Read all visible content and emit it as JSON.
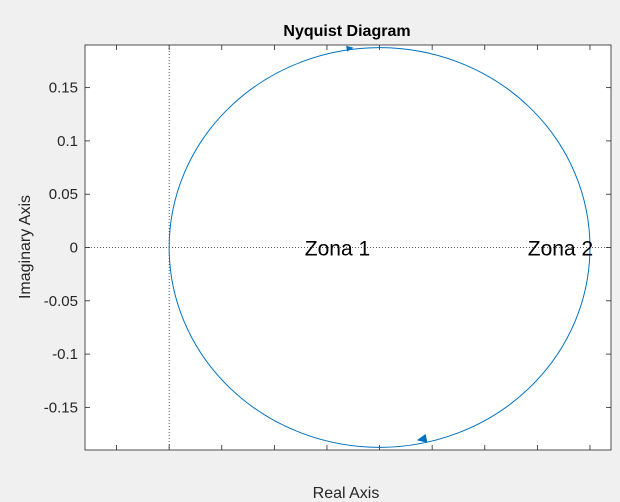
{
  "chart_data": {
    "type": "line",
    "title": "Nyquist Diagram",
    "xlabel": "Real Axis",
    "ylabel": "Imaginary Axis",
    "xlim": [
      -0.2,
      1.05
    ],
    "ylim": [
      -0.19,
      0.19
    ],
    "yticks": [
      0.15,
      0.1,
      0.05,
      0,
      -0.05,
      -0.1,
      -0.15
    ],
    "ytick_labels": [
      "0.15",
      "0.1",
      "0.05",
      "0",
      "-0.05",
      "-0.1",
      "-0.15"
    ],
    "xticks": [
      -0.125,
      0.0,
      0.125,
      0.25,
      0.375,
      0.5,
      0.625,
      0.75,
      0.875,
      1.0
    ],
    "xtick_labels_visible": false,
    "grid": false,
    "reference_lines": {
      "x0": true,
      "y0": true,
      "style": "dotted"
    },
    "series": [
      {
        "curve": "circle",
        "center": [
          0.5,
          0
        ],
        "x_range": [
          0.0,
          1.0
        ],
        "y_range": [
          -0.1875,
          0.1875
        ],
        "color": "#0072bd",
        "arrows": [
          [
            0.43,
            0.187
          ],
          [
            0.6,
            -0.18
          ]
        ]
      }
    ],
    "annotations": [
      {
        "text": "Zona 1",
        "x": 0.4,
        "y": 0
      },
      {
        "text": "Zona 2",
        "x": 0.93,
        "y": 0
      }
    ]
  },
  "colors": {
    "figure_bg": "#f0f0f0",
    "axes_bg": "#ffffff",
    "axis_color": "#262626",
    "line_color": "#0072bd"
  }
}
